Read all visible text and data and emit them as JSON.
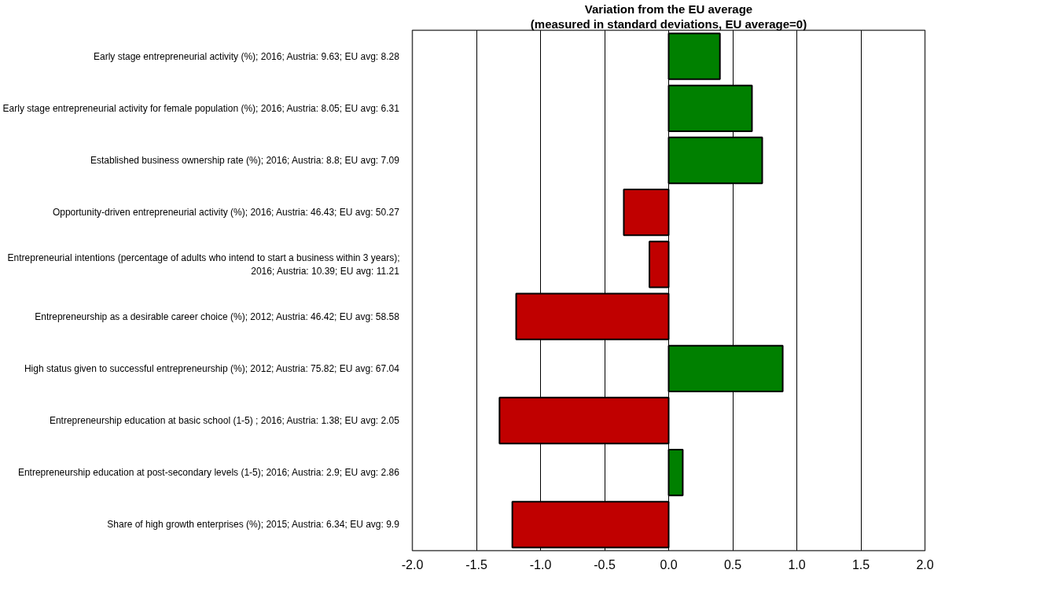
{
  "chart_data": {
    "type": "bar",
    "orientation": "horizontal",
    "title": "Variation from the EU average",
    "subtitle": "(measured in standard deviations, EU average=0)",
    "categories": [
      "Early stage entrepreneurial activity (%); 2016; Austria: 9.63; EU avg: 8.28",
      "Early stage entrepreneurial activity for female population (%); 2016; Austria: 8.05; EU avg: 6.31",
      "Established business ownership rate (%); 2016; Austria: 8.8; EU avg: 7.09",
      "Opportunity-driven entrepreneurial activity (%); 2016; Austria: 46.43; EU avg: 50.27",
      "Entrepreneurial intentions (percentage of adults who intend to start a business within 3 years); 2016; Austria: 10.39; EU avg: 11.21",
      "Entrepreneurship as a desirable career choice (%); 2012; Austria: 46.42; EU avg: 58.58",
      "High status given to successful entrepreneurship (%); 2012; Austria: 75.82; EU avg: 67.04",
      "Entrepreneurship education at basic school (1-5) ; 2016; Austria: 1.38; EU avg: 2.05",
      "Entrepreneurship education at post-secondary levels (1-5); 2016; Austria: 2.9; EU avg: 2.86",
      "Share of high growth enterprises (%); 2015; Austria: 6.34; EU avg: 9.9"
    ],
    "values": [
      0.4,
      0.65,
      0.73,
      -0.35,
      -0.15,
      -1.19,
      0.89,
      -1.32,
      0.11,
      -1.22
    ],
    "colors": [
      "#008000",
      "#008000",
      "#008000",
      "#c00000",
      "#c00000",
      "#c00000",
      "#008000",
      "#c00000",
      "#008000",
      "#c00000"
    ],
    "xlim": [
      -2.0,
      2.0
    ],
    "xticks": [
      {
        "value": -2.0,
        "label": "-2.0"
      },
      {
        "value": -1.5,
        "label": "-1.5"
      },
      {
        "value": -1.0,
        "label": "-1.0"
      },
      {
        "value": -0.5,
        "label": "-0.5"
      },
      {
        "value": 0.0,
        "label": "0.0"
      },
      {
        "value": 0.5,
        "label": "0.5"
      },
      {
        "value": 1.0,
        "label": "1.0"
      },
      {
        "value": 1.5,
        "label": "1.5"
      },
      {
        "value": 2.0,
        "label": "2.0"
      }
    ],
    "grid": "x"
  }
}
